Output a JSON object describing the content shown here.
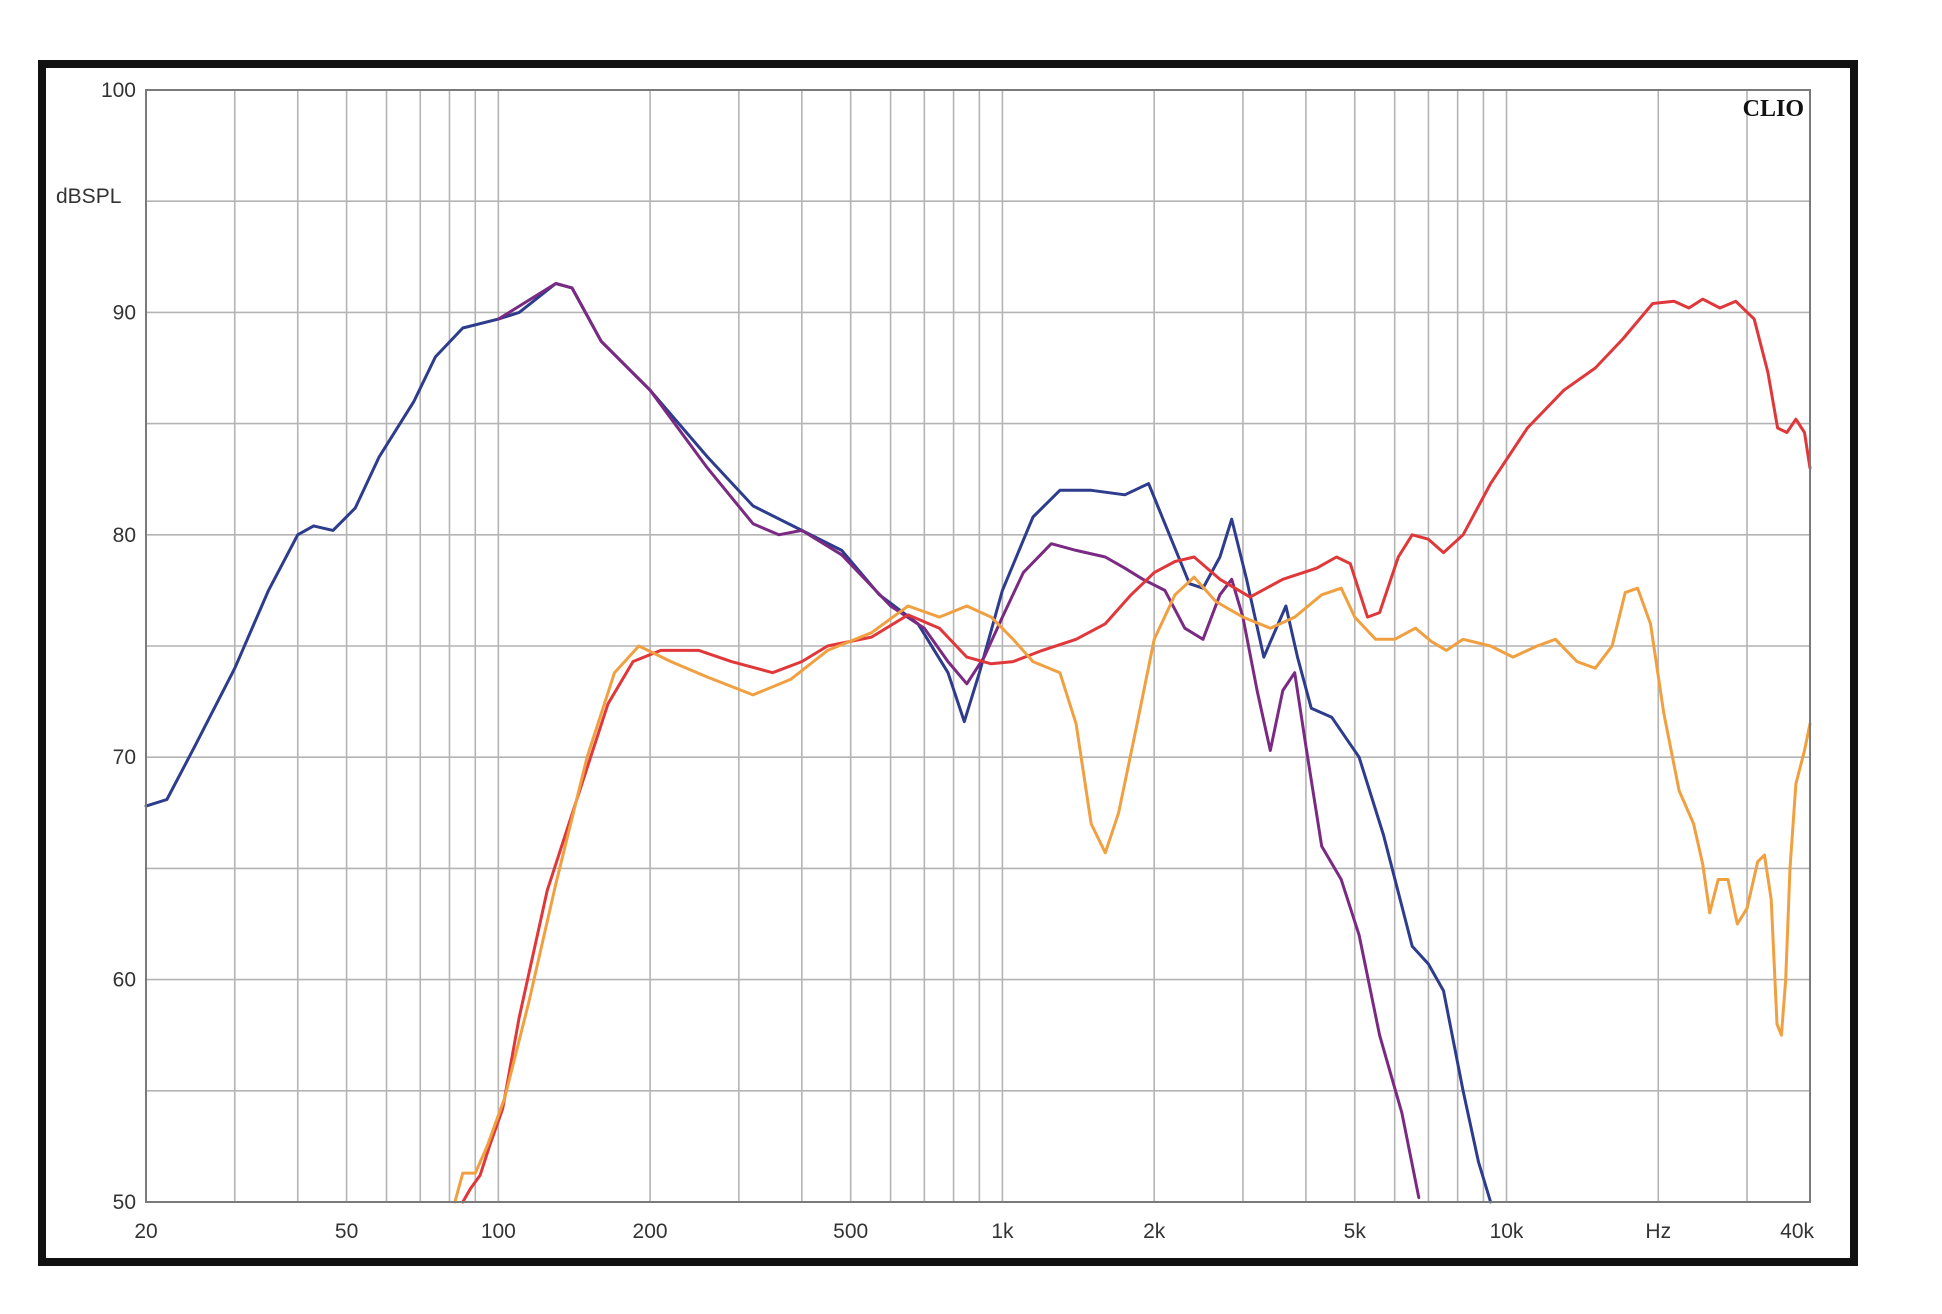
{
  "chart_data": {
    "type": "line",
    "title": "",
    "brand_label": "CLIO",
    "ylabel": "dBSPL",
    "xlabel": "",
    "x_scale": "log",
    "xlim": [
      20,
      40000
    ],
    "ylim": [
      50,
      100
    ],
    "grid": true,
    "x_tick_labels": [
      {
        "v": 20,
        "t": "20"
      },
      {
        "v": 50,
        "t": "50"
      },
      {
        "v": 100,
        "t": "100"
      },
      {
        "v": 200,
        "t": "200"
      },
      {
        "v": 500,
        "t": "500"
      },
      {
        "v": 1000,
        "t": "1k"
      },
      {
        "v": 2000,
        "t": "2k"
      },
      {
        "v": 5000,
        "t": "5k"
      },
      {
        "v": 10000,
        "t": "10k"
      },
      {
        "v": 20000,
        "t": "Hz"
      },
      {
        "v": 40000,
        "t": "40k"
      }
    ],
    "y_tick_labels": [
      {
        "v": 100,
        "t": "100"
      },
      {
        "v": 90,
        "t": "90"
      },
      {
        "v": 80,
        "t": "80"
      },
      {
        "v": 70,
        "t": "70"
      },
      {
        "v": 60,
        "t": "60"
      },
      {
        "v": 50,
        "t": "50"
      }
    ],
    "series": [
      {
        "color": "#2d3c8c",
        "points": [
          [
            20,
            67.8
          ],
          [
            22,
            68.1
          ],
          [
            25,
            70.5
          ],
          [
            30,
            74
          ],
          [
            35,
            77.5
          ],
          [
            40,
            80
          ],
          [
            43,
            80.4
          ],
          [
            47,
            80.2
          ],
          [
            52,
            81.2
          ],
          [
            58,
            83.5
          ],
          [
            68,
            86
          ],
          [
            75,
            88
          ],
          [
            85,
            89.3
          ],
          [
            100,
            89.7
          ],
          [
            110,
            90
          ],
          [
            130,
            91.3
          ],
          [
            140,
            91.1
          ],
          [
            160,
            88.7
          ],
          [
            200,
            86.5
          ],
          [
            260,
            83.5
          ],
          [
            320,
            81.3
          ],
          [
            400,
            80.2
          ],
          [
            480,
            79.3
          ],
          [
            570,
            77.3
          ],
          [
            680,
            76
          ],
          [
            780,
            73.8
          ],
          [
            840,
            71.6
          ],
          [
            900,
            73.8
          ],
          [
            1000,
            77.5
          ],
          [
            1150,
            80.8
          ],
          [
            1300,
            82
          ],
          [
            1500,
            82
          ],
          [
            1750,
            81.8
          ],
          [
            1950,
            82.3
          ],
          [
            2100,
            80.5
          ],
          [
            2350,
            77.8
          ],
          [
            2500,
            77.6
          ],
          [
            2700,
            79
          ],
          [
            2850,
            80.7
          ],
          [
            3050,
            78
          ],
          [
            3300,
            74.5
          ],
          [
            3650,
            76.8
          ],
          [
            3850,
            74.5
          ],
          [
            4100,
            72.2
          ],
          [
            4500,
            71.8
          ],
          [
            5100,
            70
          ],
          [
            5700,
            66.5
          ],
          [
            6500,
            61.5
          ],
          [
            7000,
            60.7
          ],
          [
            7500,
            59.5
          ],
          [
            8200,
            55
          ],
          [
            8800,
            51.8
          ],
          [
            9300,
            50
          ]
        ]
      },
      {
        "color": "#7a2a82",
        "points": [
          [
            100,
            89.7
          ],
          [
            130,
            91.3
          ],
          [
            140,
            91.1
          ],
          [
            160,
            88.7
          ],
          [
            200,
            86.5
          ],
          [
            260,
            83
          ],
          [
            320,
            80.5
          ],
          [
            360,
            80
          ],
          [
            400,
            80.2
          ],
          [
            480,
            79.1
          ],
          [
            600,
            76.8
          ],
          [
            700,
            75.8
          ],
          [
            780,
            74.3
          ],
          [
            850,
            73.3
          ],
          [
            920,
            74.5
          ],
          [
            1000,
            76.3
          ],
          [
            1100,
            78.3
          ],
          [
            1250,
            79.6
          ],
          [
            1400,
            79.3
          ],
          [
            1600,
            79
          ],
          [
            1750,
            78.5
          ],
          [
            1900,
            78
          ],
          [
            2100,
            77.5
          ],
          [
            2300,
            75.8
          ],
          [
            2500,
            75.3
          ],
          [
            2700,
            77.3
          ],
          [
            2850,
            78
          ],
          [
            3000,
            76.3
          ],
          [
            3200,
            73
          ],
          [
            3400,
            70.3
          ],
          [
            3600,
            73
          ],
          [
            3800,
            73.8
          ],
          [
            4000,
            70.5
          ],
          [
            4300,
            66
          ],
          [
            4700,
            64.5
          ],
          [
            5100,
            62
          ],
          [
            5600,
            57.5
          ],
          [
            6200,
            54
          ],
          [
            6700,
            50.2
          ]
        ]
      },
      {
        "color": "#e0383a",
        "points": [
          [
            85,
            50
          ],
          [
            88,
            50.6
          ],
          [
            92,
            51.2
          ],
          [
            96,
            52.5
          ],
          [
            102,
            54.2
          ],
          [
            110,
            58.3
          ],
          [
            125,
            64
          ],
          [
            145,
            68.5
          ],
          [
            165,
            72.4
          ],
          [
            185,
            74.3
          ],
          [
            210,
            74.8
          ],
          [
            250,
            74.8
          ],
          [
            290,
            74.3
          ],
          [
            350,
            73.8
          ],
          [
            400,
            74.3
          ],
          [
            450,
            75
          ],
          [
            550,
            75.4
          ],
          [
            650,
            76.4
          ],
          [
            750,
            75.8
          ],
          [
            850,
            74.5
          ],
          [
            950,
            74.2
          ],
          [
            1050,
            74.3
          ],
          [
            1200,
            74.8
          ],
          [
            1400,
            75.3
          ],
          [
            1600,
            76
          ],
          [
            1800,
            77.3
          ],
          [
            2000,
            78.3
          ],
          [
            2200,
            78.8
          ],
          [
            2400,
            79
          ],
          [
            2700,
            78
          ],
          [
            3100,
            77.2
          ],
          [
            3600,
            78
          ],
          [
            4200,
            78.5
          ],
          [
            4600,
            79
          ],
          [
            4900,
            78.7
          ],
          [
            5300,
            76.3
          ],
          [
            5600,
            76.5
          ],
          [
            6100,
            79
          ],
          [
            6500,
            80
          ],
          [
            7000,
            79.8
          ],
          [
            7500,
            79.2
          ],
          [
            8200,
            80
          ],
          [
            9300,
            82.3
          ],
          [
            11000,
            84.8
          ],
          [
            13000,
            86.5
          ],
          [
            15000,
            87.5
          ],
          [
            17000,
            88.8
          ],
          [
            19500,
            90.4
          ],
          [
            21500,
            90.5
          ],
          [
            23000,
            90.2
          ],
          [
            24500,
            90.6
          ],
          [
            26500,
            90.2
          ],
          [
            28500,
            90.5
          ],
          [
            31000,
            89.7
          ],
          [
            33000,
            87.3
          ],
          [
            34500,
            84.8
          ],
          [
            36000,
            84.6
          ],
          [
            37500,
            85.2
          ],
          [
            39000,
            84.6
          ],
          [
            40000,
            83
          ]
        ]
      },
      {
        "color": "#f0a040",
        "points": [
          [
            82,
            50
          ],
          [
            85,
            51.3
          ],
          [
            90,
            51.3
          ],
          [
            95,
            52.5
          ],
          [
            103,
            54.7
          ],
          [
            115,
            59
          ],
          [
            130,
            64.3
          ],
          [
            150,
            70
          ],
          [
            170,
            73.8
          ],
          [
            190,
            75
          ],
          [
            220,
            74.3
          ],
          [
            260,
            73.6
          ],
          [
            320,
            72.8
          ],
          [
            380,
            73.5
          ],
          [
            450,
            74.8
          ],
          [
            550,
            75.6
          ],
          [
            650,
            76.8
          ],
          [
            750,
            76.3
          ],
          [
            850,
            76.8
          ],
          [
            950,
            76.3
          ],
          [
            1050,
            75.3
          ],
          [
            1150,
            74.3
          ],
          [
            1300,
            73.8
          ],
          [
            1400,
            71.5
          ],
          [
            1500,
            67
          ],
          [
            1600,
            65.7
          ],
          [
            1700,
            67.5
          ],
          [
            1850,
            71.5
          ],
          [
            2000,
            75.3
          ],
          [
            2200,
            77.3
          ],
          [
            2400,
            78.1
          ],
          [
            2650,
            77
          ],
          [
            3000,
            76.3
          ],
          [
            3400,
            75.8
          ],
          [
            3800,
            76.3
          ],
          [
            4300,
            77.3
          ],
          [
            4700,
            77.6
          ],
          [
            5000,
            76.3
          ],
          [
            5500,
            75.3
          ],
          [
            6000,
            75.3
          ],
          [
            6600,
            75.8
          ],
          [
            7100,
            75.2
          ],
          [
            7600,
            74.8
          ],
          [
            8200,
            75.3
          ],
          [
            9300,
            75
          ],
          [
            10300,
            74.5
          ],
          [
            11500,
            75
          ],
          [
            12500,
            75.3
          ],
          [
            13800,
            74.3
          ],
          [
            15000,
            74
          ],
          [
            16200,
            75
          ],
          [
            17200,
            77.4
          ],
          [
            18200,
            77.6
          ],
          [
            19300,
            76
          ],
          [
            20500,
            72
          ],
          [
            22000,
            68.5
          ],
          [
            23500,
            67
          ],
          [
            24500,
            65.2
          ],
          [
            25300,
            63
          ],
          [
            26300,
            64.5
          ],
          [
            27500,
            64.5
          ],
          [
            28700,
            62.5
          ],
          [
            30000,
            63.2
          ],
          [
            31500,
            65.3
          ],
          [
            32500,
            65.6
          ],
          [
            33500,
            63.6
          ],
          [
            34400,
            58
          ],
          [
            35100,
            57.5
          ],
          [
            35800,
            60
          ],
          [
            36500,
            65
          ],
          [
            37500,
            68.8
          ],
          [
            39000,
            70.3
          ],
          [
            40000,
            71.5
          ]
        ]
      }
    ]
  }
}
